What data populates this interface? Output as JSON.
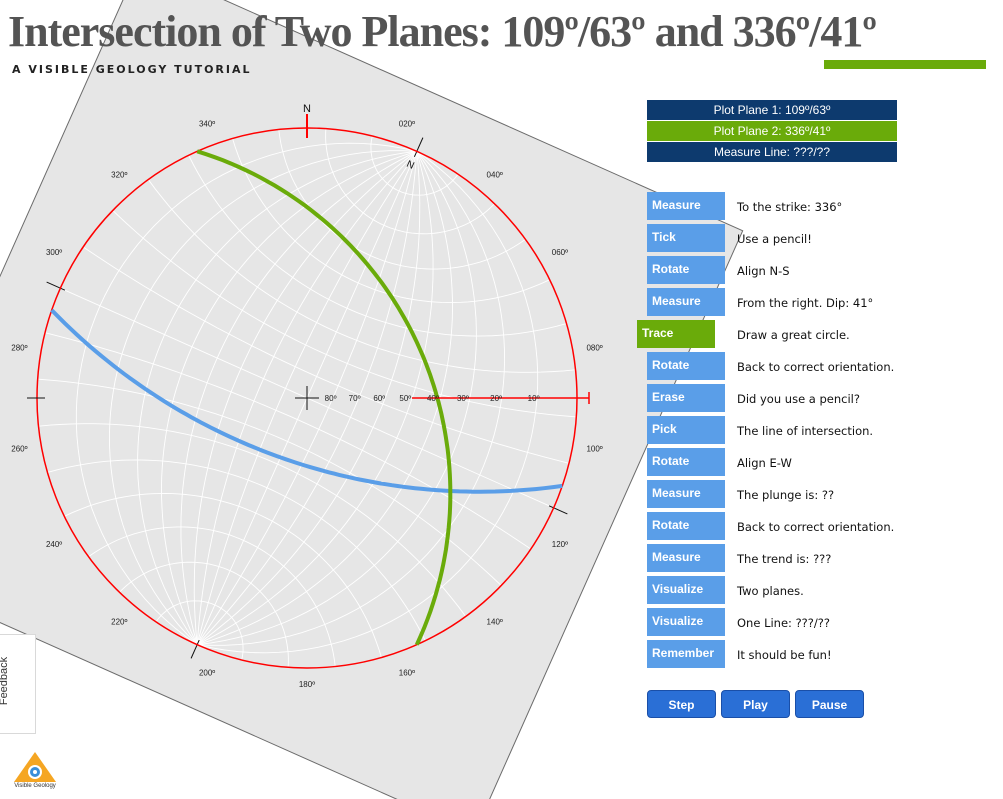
{
  "title": "Intersection of Two Planes: 109º/63º and 336º/41º",
  "subtitle": "A VISIBLE GEOLOGY TUTORIAL",
  "colors": {
    "plane1": "#5a9ee8",
    "plane2": "#6aab0a",
    "primitive": "#ff0000",
    "legend_dark": "#0d3a6e",
    "button_blue": "#5a9ee8",
    "control_blue": "#2a6fd6"
  },
  "legend": [
    "Plot Plane 1: 109º/63º",
    "Plot Plane 2: 336º/41º",
    "Measure Line: ???/??"
  ],
  "steps": [
    {
      "button": "Measure",
      "text": "To the strike: 336°"
    },
    {
      "button": "Tick",
      "text": "Use a pencil!"
    },
    {
      "button": "Rotate",
      "text": "Align N-S"
    },
    {
      "button": "Measure",
      "text": "From the right. Dip: 41°"
    },
    {
      "button": "Trace",
      "text": "Draw a great circle.",
      "active": true
    },
    {
      "button": "Rotate",
      "text": "Back to correct orientation."
    },
    {
      "button": "Erase",
      "text": "Did you use a pencil?"
    },
    {
      "button": "Pick",
      "text": "The line of intersection."
    },
    {
      "button": "Rotate",
      "text": "Align E-W"
    },
    {
      "button": "Measure",
      "text": "The plunge is: ??"
    },
    {
      "button": "Rotate",
      "text": "Back to correct orientation."
    },
    {
      "button": "Measure",
      "text": "The trend is: ???"
    },
    {
      "button": "Visualize",
      "text": "Two planes."
    },
    {
      "button": "Visualize",
      "text": "One Line: ???/??"
    },
    {
      "button": "Remember",
      "text": "It should be fun!"
    }
  ],
  "controls": {
    "step": "Step",
    "play": "Play",
    "pause": "Pause"
  },
  "feedback": "Feedback",
  "logo_text": "Visible Geology",
  "stereonet": {
    "north_label": "N",
    "rotated_north_label": "N",
    "overlay_rotation_deg": 24,
    "plane1": {
      "strike": 109,
      "dip": 63
    },
    "plane2": {
      "strike": 336,
      "dip": 41
    },
    "azimuth_labels": [
      "340º",
      "020º",
      "040º",
      "060º",
      "080º",
      "100º",
      "120º",
      "140º",
      "160º",
      "180º",
      "200º",
      "220º",
      "240º",
      "260º",
      "280º",
      "300º",
      "320º"
    ],
    "dip_scale_labels": [
      "80º",
      "70º",
      "60º",
      "50º",
      "40º",
      "30º",
      "20º",
      "10º"
    ]
  }
}
